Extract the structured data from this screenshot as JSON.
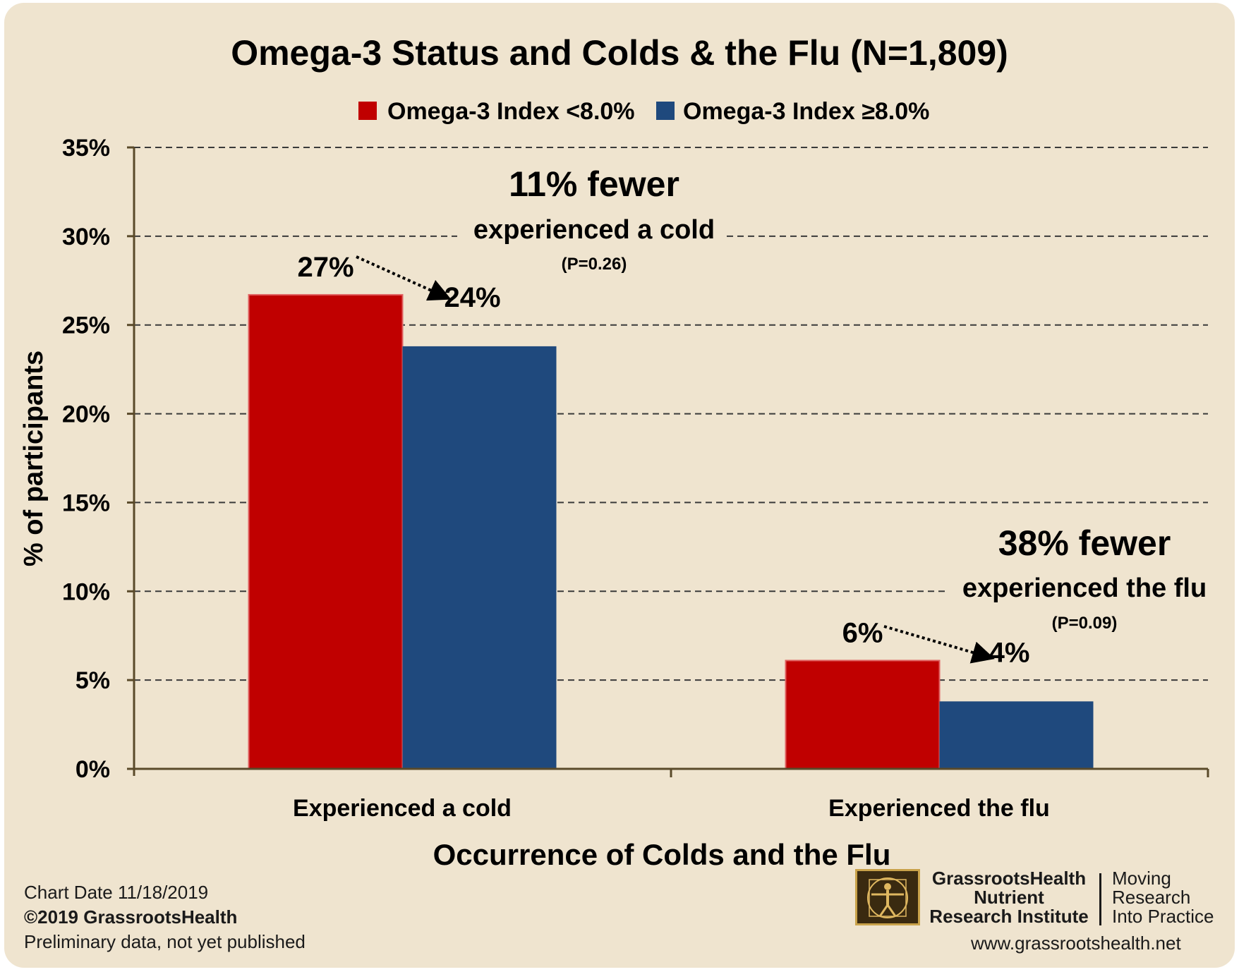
{
  "chart_data": {
    "type": "bar",
    "title": "Omega-3 Status and Colds & the Flu (N=1,809)",
    "xlabel": "Occurrence of Colds and the Flu",
    "ylabel": "% of participants",
    "categories": [
      "Experienced a cold",
      "Experienced the flu"
    ],
    "series": [
      {
        "name": "Omega-3 Index <8.0%",
        "color": "#c00000",
        "values": [
          26.7,
          6.1
        ]
      },
      {
        "name": "Omega-3 Index ≥8.0%",
        "color": "#1f497d",
        "values": [
          23.8,
          3.8
        ]
      }
    ],
    "data_labels": [
      [
        "27%",
        "6%"
      ],
      [
        "24%",
        "4%"
      ]
    ],
    "ylim": [
      0,
      35
    ],
    "yticks": [
      0,
      5,
      10,
      15,
      20,
      25,
      30,
      35
    ],
    "ytick_labels": [
      "0%",
      "5%",
      "10%",
      "15%",
      "20%",
      "25%",
      "30%",
      "35%"
    ],
    "grid": "dashed horizontal",
    "legend_position": "top-center",
    "annotations": [
      {
        "headline": "11% fewer",
        "subline": "experienced a cold",
        "pvalue": "(P=0.26)"
      },
      {
        "headline": "38% fewer",
        "subline": "experienced the flu",
        "pvalue": "(P=0.09)"
      }
    ]
  },
  "footer": {
    "chart_date": "Chart Date  11/18/2019",
    "copyright": "©2019 GrassrootsHealth",
    "note": "Preliminary data, not yet published"
  },
  "branding": {
    "org_line1": "GrassrootsHealth",
    "org_line2": "Nutrient",
    "org_line3": "Research Institute",
    "tagline_line1": "Moving",
    "tagline_line2": "Research",
    "tagline_line3": "Into Practice",
    "website": "www.grassrootshealth.net"
  }
}
